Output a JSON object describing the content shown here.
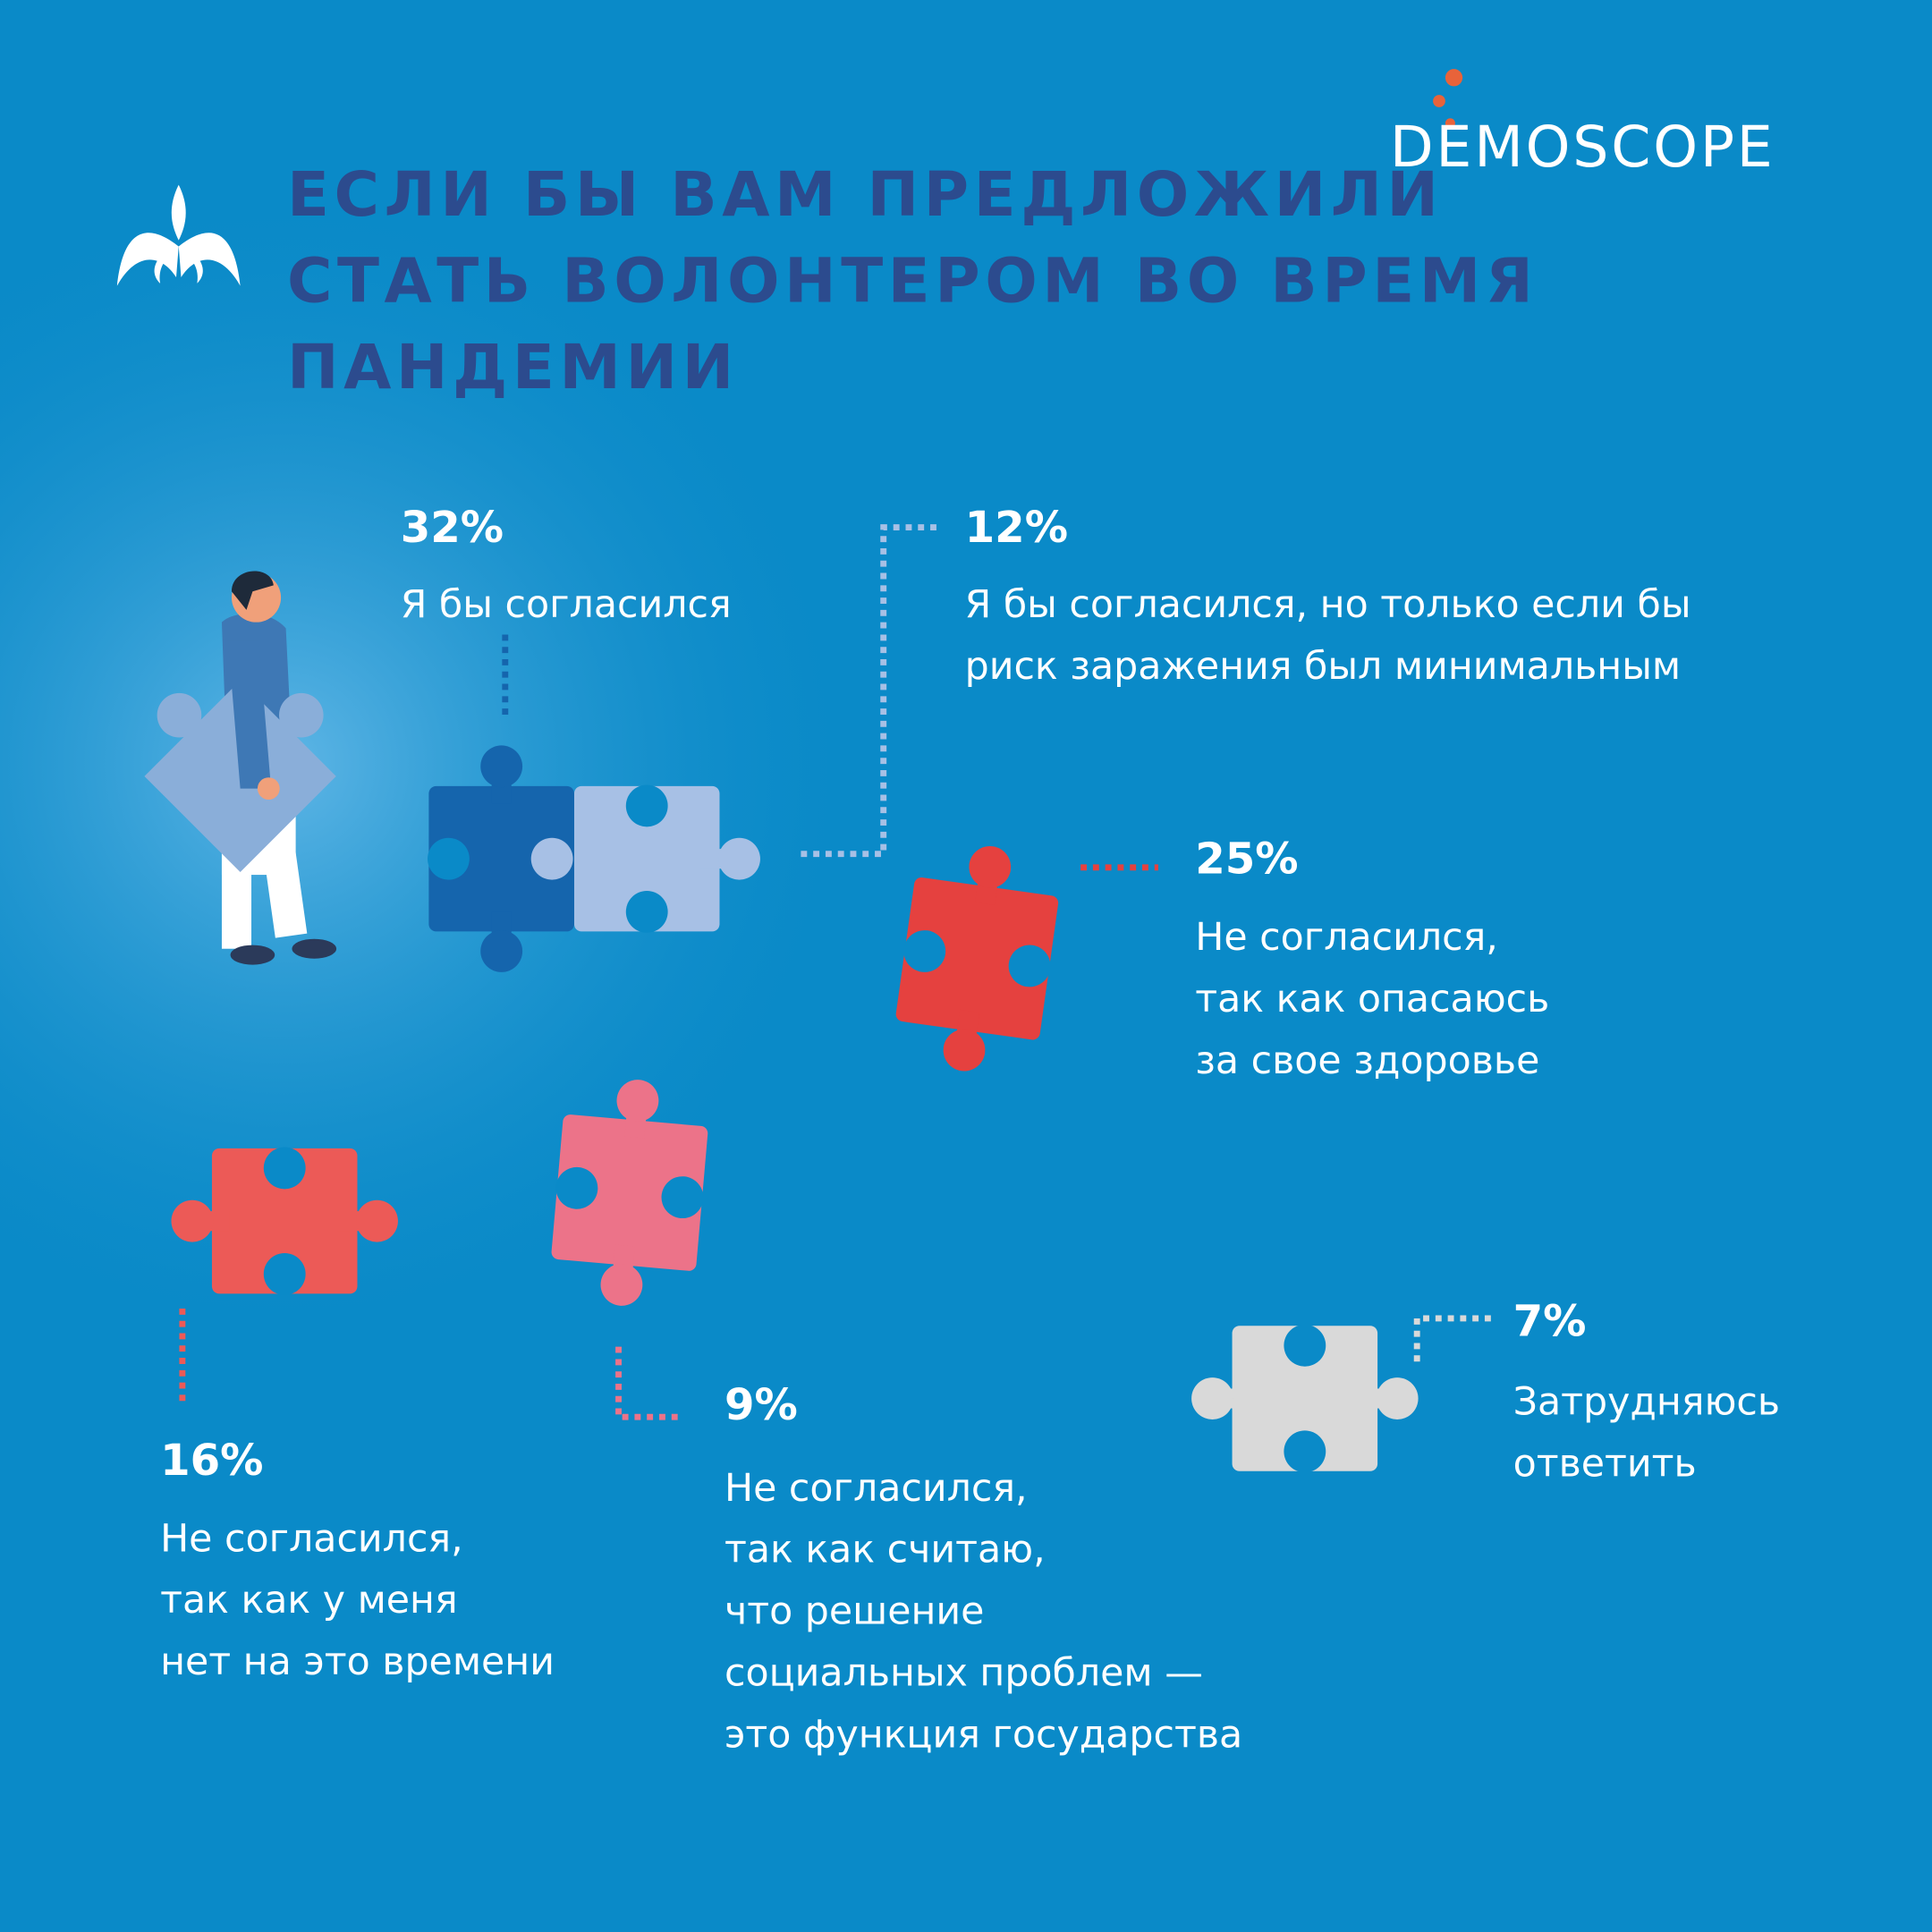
{
  "header": {
    "title": [
      "ЕСЛИ БЫ ВАМ ПРЕДЛОЖИЛИ",
      "СТАТЬ ВОЛОНТЕРОМ ВО ВРЕМЯ",
      "ПАНДЕМИИ"
    ],
    "logo": "DEMOSCOPE"
  },
  "answers": [
    {
      "value": "32%",
      "label": [
        "Я бы согласился"
      ]
    },
    {
      "value": "12%",
      "label": [
        "Я бы согласился, но только если бы",
        "риск заражения был минимальным"
      ]
    },
    {
      "value": "25%",
      "label": [
        "Не согласился,",
        "так как опасаюсь",
        "за свое здоровье"
      ]
    },
    {
      "value": "16%",
      "label": [
        "Не согласился,",
        "так как у меня",
        "нет на это времени"
      ]
    },
    {
      "value": "9%",
      "label": [
        "Не согласился,",
        "так как считаю,",
        "что решение",
        "социальных проблем —",
        "это функция государства"
      ]
    },
    {
      "value": "7%",
      "label": [
        "Затрудняюсь",
        "ответить"
      ]
    }
  ]
}
